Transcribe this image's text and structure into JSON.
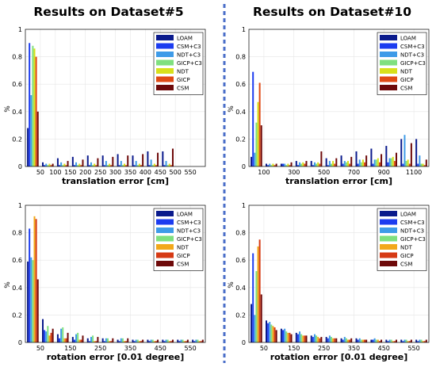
{
  "figure": {
    "titles": [
      "Results on Dataset#5",
      "Results on Dataset#10"
    ]
  },
  "chart_data": [
    {
      "type": "bar",
      "title": "Results on Dataset#5",
      "xlabel": "translation error [cm]",
      "ylabel": "%",
      "ylim": [
        0,
        1
      ],
      "yticks": [
        "0",
        "0.2",
        "0.4",
        "0.6",
        "0.8",
        "1"
      ],
      "xticks": [
        "50",
        "100",
        "150",
        "200",
        "250",
        "300",
        "350",
        "400",
        "450",
        "500",
        "550"
      ],
      "grid": true,
      "legend_position": "top-right",
      "categories": [
        "25",
        "75",
        "125",
        "175",
        "225",
        "275",
        "325",
        "375",
        "425",
        "475",
        "525"
      ],
      "series": [
        {
          "name": "LOAM",
          "color": "#0a1a8c",
          "values": [
            0.28,
            0.03,
            0.06,
            0.07,
            0.08,
            0.08,
            0.09,
            0.08,
            0.11,
            0.11,
            0.0
          ]
        },
        {
          "name": "CSM+C3",
          "color": "#1c3cf0",
          "values": [
            0.9,
            0.01,
            0.01,
            0.01,
            0.01,
            0.01,
            0.01,
            0.01,
            0.01,
            0.01,
            0.0
          ]
        },
        {
          "name": "NDT+C3",
          "color": "#3e9be8",
          "values": [
            0.52,
            0.02,
            0.03,
            0.03,
            0.03,
            0.04,
            0.04,
            0.04,
            0.05,
            0.04,
            0.0
          ]
        },
        {
          "name": "GICP+C3",
          "color": "#7fe07f",
          "values": [
            0.88,
            0.01,
            0.01,
            0.01,
            0.01,
            0.01,
            0.01,
            0.01,
            0.01,
            0.01,
            0.0
          ]
        },
        {
          "name": "NDT",
          "color": "#d8e01a",
          "values": [
            0.86,
            0.02,
            0.02,
            0.02,
            0.02,
            0.02,
            0.02,
            0.02,
            0.02,
            0.02,
            0.0
          ]
        },
        {
          "name": "GICP",
          "color": "#e04a14",
          "values": [
            0.8,
            0.01,
            0.01,
            0.01,
            0.01,
            0.01,
            0.01,
            0.01,
            0.01,
            0.01,
            0.0
          ]
        },
        {
          "name": "CSM",
          "color": "#6e0a0a",
          "values": [
            0.4,
            0.02,
            0.04,
            0.05,
            0.06,
            0.07,
            0.08,
            0.09,
            0.1,
            0.13,
            0.0
          ]
        }
      ]
    },
    {
      "type": "bar",
      "title": "Results on Dataset#10",
      "xlabel": "translation error [cm]",
      "ylabel": "%",
      "ylim": [
        0,
        1
      ],
      "yticks": [
        "0",
        "0.2",
        "0.4",
        "0.6",
        "0.8",
        "1"
      ],
      "xticks": [
        "100",
        "300",
        "500",
        "700",
        "900",
        "1100"
      ],
      "grid": true,
      "legend_position": "top-right",
      "categories": [
        "50",
        "150",
        "250",
        "350",
        "450",
        "550",
        "650",
        "750",
        "850",
        "950",
        "1050",
        "1150"
      ],
      "series": [
        {
          "name": "LOAM",
          "color": "#0a1a8c",
          "values": [
            0.07,
            0.02,
            0.02,
            0.04,
            0.04,
            0.06,
            0.08,
            0.11,
            0.13,
            0.15,
            0.2,
            0.2
          ]
        },
        {
          "name": "CSM+C3",
          "color": "#1c3cf0",
          "values": [
            0.69,
            0.01,
            0.02,
            0.01,
            0.01,
            0.01,
            0.02,
            0.02,
            0.02,
            0.03,
            0.02,
            0.02
          ]
        },
        {
          "name": "NDT+C3",
          "color": "#3e9be8",
          "values": [
            0.1,
            0.02,
            0.02,
            0.03,
            0.03,
            0.04,
            0.04,
            0.05,
            0.05,
            0.06,
            0.23,
            0.08
          ]
        },
        {
          "name": "GICP+C3",
          "color": "#7fe07f",
          "values": [
            0.32,
            0.01,
            0.01,
            0.02,
            0.02,
            0.02,
            0.03,
            0.03,
            0.05,
            0.06,
            0.04,
            0.02
          ]
        },
        {
          "name": "NDT",
          "color": "#d8e01a",
          "values": [
            0.47,
            0.02,
            0.02,
            0.03,
            0.03,
            0.04,
            0.04,
            0.05,
            0.06,
            0.07,
            0.05,
            0.02
          ]
        },
        {
          "name": "GICP",
          "color": "#e04a14",
          "values": [
            0.61,
            0.01,
            0.01,
            0.02,
            0.02,
            0.02,
            0.02,
            0.03,
            0.03,
            0.04,
            0.02,
            0.01
          ]
        },
        {
          "name": "CSM",
          "color": "#6e0a0a",
          "values": [
            0.3,
            0.02,
            0.03,
            0.04,
            0.11,
            0.06,
            0.07,
            0.08,
            0.09,
            0.1,
            0.17,
            0.05
          ]
        }
      ]
    },
    {
      "type": "bar",
      "title": "",
      "xlabel": "rotation error [0.01 degree]",
      "ylabel": "%",
      "ylim": [
        0,
        1
      ],
      "yticks": [
        "0",
        "0.2",
        "0.4",
        "0.6",
        "0.8",
        "1"
      ],
      "xticks": [
        "50",
        "150",
        "250",
        "350",
        "450",
        "550"
      ],
      "grid": true,
      "legend_position": "top-right",
      "categories": [
        "25",
        "75",
        "125",
        "175",
        "225",
        "275",
        "325",
        "375",
        "425",
        "475",
        "525",
        "575"
      ],
      "series": [
        {
          "name": "LOAM",
          "color": "#0a1a8c",
          "values": [
            0.59,
            0.17,
            0.06,
            0.04,
            0.03,
            0.03,
            0.02,
            0.02,
            0.02,
            0.02,
            0.02,
            0.02
          ]
        },
        {
          "name": "CSM+C3",
          "color": "#1c3cf0",
          "values": [
            0.83,
            0.09,
            0.03,
            0.02,
            0.01,
            0.01,
            0.01,
            0.01,
            0.01,
            0.01,
            0.01,
            0.01
          ]
        },
        {
          "name": "NDT+C3",
          "color": "#3e9be8",
          "values": [
            0.62,
            0.08,
            0.1,
            0.06,
            0.04,
            0.03,
            0.03,
            0.02,
            0.02,
            0.02,
            0.02,
            0.02
          ]
        },
        {
          "name": "GICP+C3",
          "color": "#7fe07f",
          "values": [
            0.6,
            0.12,
            0.11,
            0.07,
            0.05,
            0.03,
            0.03,
            0.02,
            0.02,
            0.02,
            0.02,
            0.02
          ]
        },
        {
          "name": "NDT",
          "color": "#f2a81a",
          "values": [
            0.92,
            0.05,
            0.03,
            0.02,
            0.01,
            0.01,
            0.01,
            0.01,
            0.01,
            0.01,
            0.01,
            0.01
          ]
        },
        {
          "name": "GICP",
          "color": "#d63a14",
          "values": [
            0.9,
            0.07,
            0.03,
            0.02,
            0.01,
            0.01,
            0.01,
            0.01,
            0.01,
            0.01,
            0.01,
            0.01
          ]
        },
        {
          "name": "CSM",
          "color": "#6e0a0a",
          "values": [
            0.46,
            0.1,
            0.07,
            0.05,
            0.04,
            0.03,
            0.03,
            0.02,
            0.02,
            0.02,
            0.02,
            0.02
          ]
        }
      ]
    },
    {
      "type": "bar",
      "title": "",
      "xlabel": "rotation error [0.01 degree]",
      "ylabel": "%",
      "ylim": [
        0,
        1
      ],
      "yticks": [
        "0",
        "0.2",
        "0.4",
        "0.6",
        "0.8",
        "1"
      ],
      "xticks": [
        "50",
        "150",
        "250",
        "350",
        "450",
        "550"
      ],
      "grid": true,
      "legend_position": "top-right",
      "categories": [
        "25",
        "75",
        "125",
        "175",
        "225",
        "275",
        "325",
        "375",
        "425",
        "475",
        "525",
        "575"
      ],
      "series": [
        {
          "name": "LOAM",
          "color": "#0a1a8c",
          "values": [
            0.28,
            0.16,
            0.1,
            0.07,
            0.05,
            0.04,
            0.03,
            0.03,
            0.02,
            0.02,
            0.02,
            0.02
          ]
        },
        {
          "name": "CSM+C3",
          "color": "#1c3cf0",
          "values": [
            0.65,
            0.14,
            0.09,
            0.06,
            0.04,
            0.03,
            0.02,
            0.02,
            0.02,
            0.01,
            0.01,
            0.01
          ]
        },
        {
          "name": "NDT+C3",
          "color": "#3e9be8",
          "values": [
            0.2,
            0.15,
            0.1,
            0.08,
            0.06,
            0.05,
            0.04,
            0.03,
            0.03,
            0.02,
            0.02,
            0.02
          ]
        },
        {
          "name": "GICP+C3",
          "color": "#7fe07f",
          "values": [
            0.52,
            0.13,
            0.08,
            0.06,
            0.05,
            0.04,
            0.03,
            0.02,
            0.02,
            0.02,
            0.02,
            0.02
          ]
        },
        {
          "name": "NDT",
          "color": "#f2a81a",
          "values": [
            0.7,
            0.12,
            0.07,
            0.05,
            0.04,
            0.03,
            0.02,
            0.02,
            0.02,
            0.01,
            0.01,
            0.01
          ]
        },
        {
          "name": "GICP",
          "color": "#d63a14",
          "values": [
            0.75,
            0.11,
            0.07,
            0.05,
            0.03,
            0.03,
            0.02,
            0.02,
            0.01,
            0.01,
            0.01,
            0.01
          ]
        },
        {
          "name": "CSM",
          "color": "#6e0a0a",
          "values": [
            0.35,
            0.09,
            0.06,
            0.05,
            0.04,
            0.03,
            0.03,
            0.02,
            0.02,
            0.02,
            0.02,
            0.02
          ]
        }
      ]
    }
  ]
}
